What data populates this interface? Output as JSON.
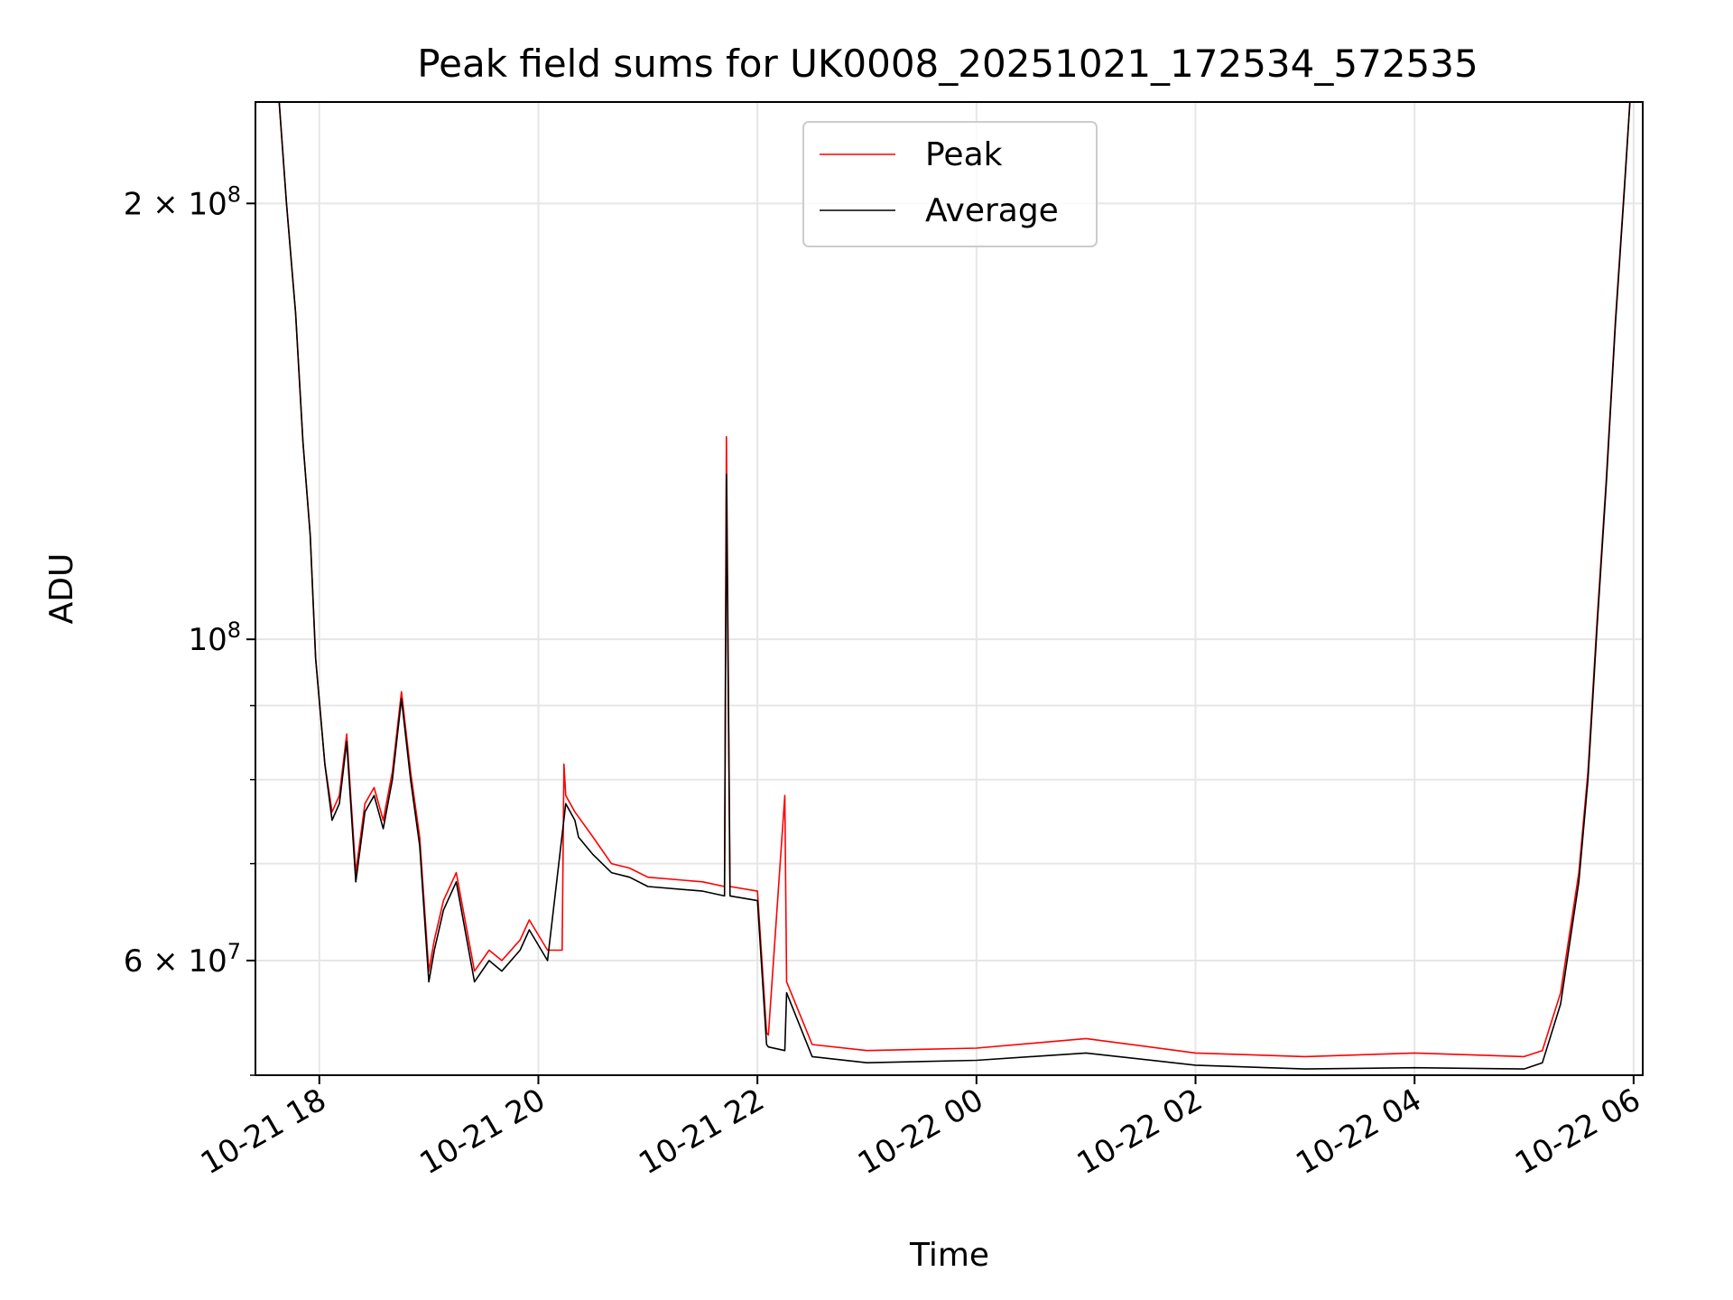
{
  "chart_data": {
    "type": "line",
    "title": "Peak field sums for UK0008_20251021_172534_572535",
    "xlabel": "Time",
    "ylabel": "ADU",
    "y_scale": "log",
    "ylim": [
      50000000,
      235000000
    ],
    "xlim": [
      "2025-10-21 17:25",
      "2025-10-22 06:05"
    ],
    "grid": true,
    "legend_position": "top-center",
    "x_ticks": [
      {
        "t": "2025-10-21 18:00",
        "label": "10-21 18"
      },
      {
        "t": "2025-10-21 20:00",
        "label": "10-21 20"
      },
      {
        "t": "2025-10-21 22:00",
        "label": "10-21 22"
      },
      {
        "t": "2025-10-22 00:00",
        "label": "10-22 00"
      },
      {
        "t": "2025-10-22 02:00",
        "label": "10-22 02"
      },
      {
        "t": "2025-10-22 04:00",
        "label": "10-22 04"
      },
      {
        "t": "2025-10-22 06:00",
        "label": "10-22 06"
      }
    ],
    "y_ticks_major": [
      {
        "v": 200000000,
        "label": "2 × 10^8"
      },
      {
        "v": 100000000,
        "label": "10^8"
      },
      {
        "v": 60000000,
        "label": "6 × 10^7"
      }
    ],
    "y_ticks_minor": [
      50000000,
      70000000,
      80000000,
      90000000
    ],
    "colors": {
      "Peak": "#ff0000",
      "Average": "#000000"
    },
    "series": [
      {
        "name": "Average",
        "x": [
          "2025-10-21 17:25",
          "2025-10-21 17:38",
          "2025-10-21 17:42",
          "2025-10-21 17:47",
          "2025-10-21 17:51",
          "2025-10-21 17:55",
          "2025-10-21 17:58",
          "2025-10-21 18:03",
          "2025-10-21 18:07",
          "2025-10-21 18:11",
          "2025-10-21 18:15",
          "2025-10-21 18:20",
          "2025-10-21 18:25",
          "2025-10-21 18:30",
          "2025-10-21 18:35",
          "2025-10-21 18:40",
          "2025-10-21 18:45",
          "2025-10-21 18:50",
          "2025-10-21 18:55",
          "2025-10-21 19:00",
          "2025-10-21 19:03",
          "2025-10-21 19:08",
          "2025-10-21 19:15",
          "2025-10-21 19:25",
          "2025-10-21 19:33",
          "2025-10-21 19:40",
          "2025-10-21 19:50",
          "2025-10-21 19:55",
          "2025-10-21 20:05",
          "2025-10-21 20:15",
          "2025-10-21 20:20",
          "2025-10-21 20:22",
          "2025-10-21 20:30",
          "2025-10-21 20:40",
          "2025-10-21 20:50",
          "2025-10-21 21:00",
          "2025-10-21 21:30",
          "2025-10-21 21:42",
          "2025-10-21 21:43",
          "2025-10-21 21:45",
          "2025-10-21 22:00",
          "2025-10-21 22:05",
          "2025-10-21 22:06",
          "2025-10-21 22:15",
          "2025-10-21 22:16",
          "2025-10-21 22:30",
          "2025-10-21 23:00",
          "2025-10-22 00:00",
          "2025-10-22 01:00",
          "2025-10-22 02:00",
          "2025-10-22 03:00",
          "2025-10-22 04:00",
          "2025-10-22 05:00",
          "2025-10-22 05:10",
          "2025-10-22 05:20",
          "2025-10-22 05:30",
          "2025-10-22 05:35",
          "2025-10-22 05:40",
          "2025-10-22 05:45",
          "2025-10-22 05:50",
          "2025-10-22 05:55",
          "2025-10-22 05:58",
          "2025-10-22 06:00"
        ],
        "values": [
          235000000,
          235000000,
          200000000,
          168000000,
          137000000,
          118000000,
          97000000,
          82000000,
          75000000,
          77000000,
          85000000,
          68000000,
          76000000,
          78000000,
          74000000,
          80000000,
          91000000,
          80000000,
          72000000,
          58000000,
          61000000,
          65000000,
          68000000,
          58000000,
          60000000,
          59000000,
          61000000,
          63000000,
          60000000,
          77000000,
          75000000,
          73000000,
          71000000,
          69000000,
          68500000,
          67500000,
          67000000,
          66500000,
          130000000,
          66500000,
          66000000,
          52500000,
          52300000,
          52000000,
          57000000,
          51500000,
          51000000,
          51200000,
          51800000,
          50800000,
          50500000,
          50600000,
          50500000,
          51000000,
          56000000,
          68000000,
          80000000,
          102000000,
          128000000,
          165000000,
          205000000,
          235000000,
          235000000
        ]
      },
      {
        "name": "Peak",
        "x": [
          "2025-10-21 17:25",
          "2025-10-21 17:38",
          "2025-10-21 17:42",
          "2025-10-21 17:47",
          "2025-10-21 17:51",
          "2025-10-21 17:55",
          "2025-10-21 17:58",
          "2025-10-21 18:03",
          "2025-10-21 18:07",
          "2025-10-21 18:11",
          "2025-10-21 18:15",
          "2025-10-21 18:20",
          "2025-10-21 18:25",
          "2025-10-21 18:30",
          "2025-10-21 18:35",
          "2025-10-21 18:40",
          "2025-10-21 18:45",
          "2025-10-21 18:50",
          "2025-10-21 18:55",
          "2025-10-21 19:00",
          "2025-10-21 19:03",
          "2025-10-21 19:08",
          "2025-10-21 19:15",
          "2025-10-21 19:25",
          "2025-10-21 19:33",
          "2025-10-21 19:40",
          "2025-10-21 19:50",
          "2025-10-21 19:55",
          "2025-10-21 20:05",
          "2025-10-21 20:13",
          "2025-10-21 20:14",
          "2025-10-21 20:15",
          "2025-10-21 20:20",
          "2025-10-21 20:30",
          "2025-10-21 20:40",
          "2025-10-21 20:50",
          "2025-10-21 21:00",
          "2025-10-21 21:30",
          "2025-10-21 21:42",
          "2025-10-21 21:43",
          "2025-10-21 21:45",
          "2025-10-21 22:00",
          "2025-10-21 22:05",
          "2025-10-21 22:06",
          "2025-10-21 22:15",
          "2025-10-21 22:16",
          "2025-10-21 22:30",
          "2025-10-21 23:00",
          "2025-10-22 00:00",
          "2025-10-22 01:00",
          "2025-10-22 02:00",
          "2025-10-22 03:00",
          "2025-10-22 04:00",
          "2025-10-22 05:00",
          "2025-10-22 05:10",
          "2025-10-22 05:20",
          "2025-10-22 05:30",
          "2025-10-22 05:35",
          "2025-10-22 05:40",
          "2025-10-22 05:45",
          "2025-10-22 05:50",
          "2025-10-22 05:55",
          "2025-10-22 05:58",
          "2025-10-22 06:00"
        ],
        "values": [
          235000000,
          235000000,
          200000000,
          168000000,
          137000000,
          118000000,
          97000000,
          82000000,
          76000000,
          78000000,
          86000000,
          69000000,
          77000000,
          79000000,
          75000000,
          81000000,
          92000000,
          81000000,
          73000000,
          59000000,
          62000000,
          66000000,
          69000000,
          59000000,
          61000000,
          60000000,
          62000000,
          64000000,
          61000000,
          61000000,
          82000000,
          78000000,
          76000000,
          73000000,
          70000000,
          69500000,
          68500000,
          68000000,
          67500000,
          138000000,
          67500000,
          67000000,
          53500000,
          53300000,
          78000000,
          58000000,
          52500000,
          52000000,
          52200000,
          53000000,
          51800000,
          51500000,
          51800000,
          51500000,
          52000000,
          57000000,
          69000000,
          81000000,
          103000000,
          129000000,
          166000000,
          206000000,
          235000000,
          235000000
        ]
      }
    ]
  },
  "legend": {
    "items": [
      {
        "name": "Peak",
        "label": "Peak"
      },
      {
        "name": "Average",
        "label": "Average"
      }
    ]
  }
}
